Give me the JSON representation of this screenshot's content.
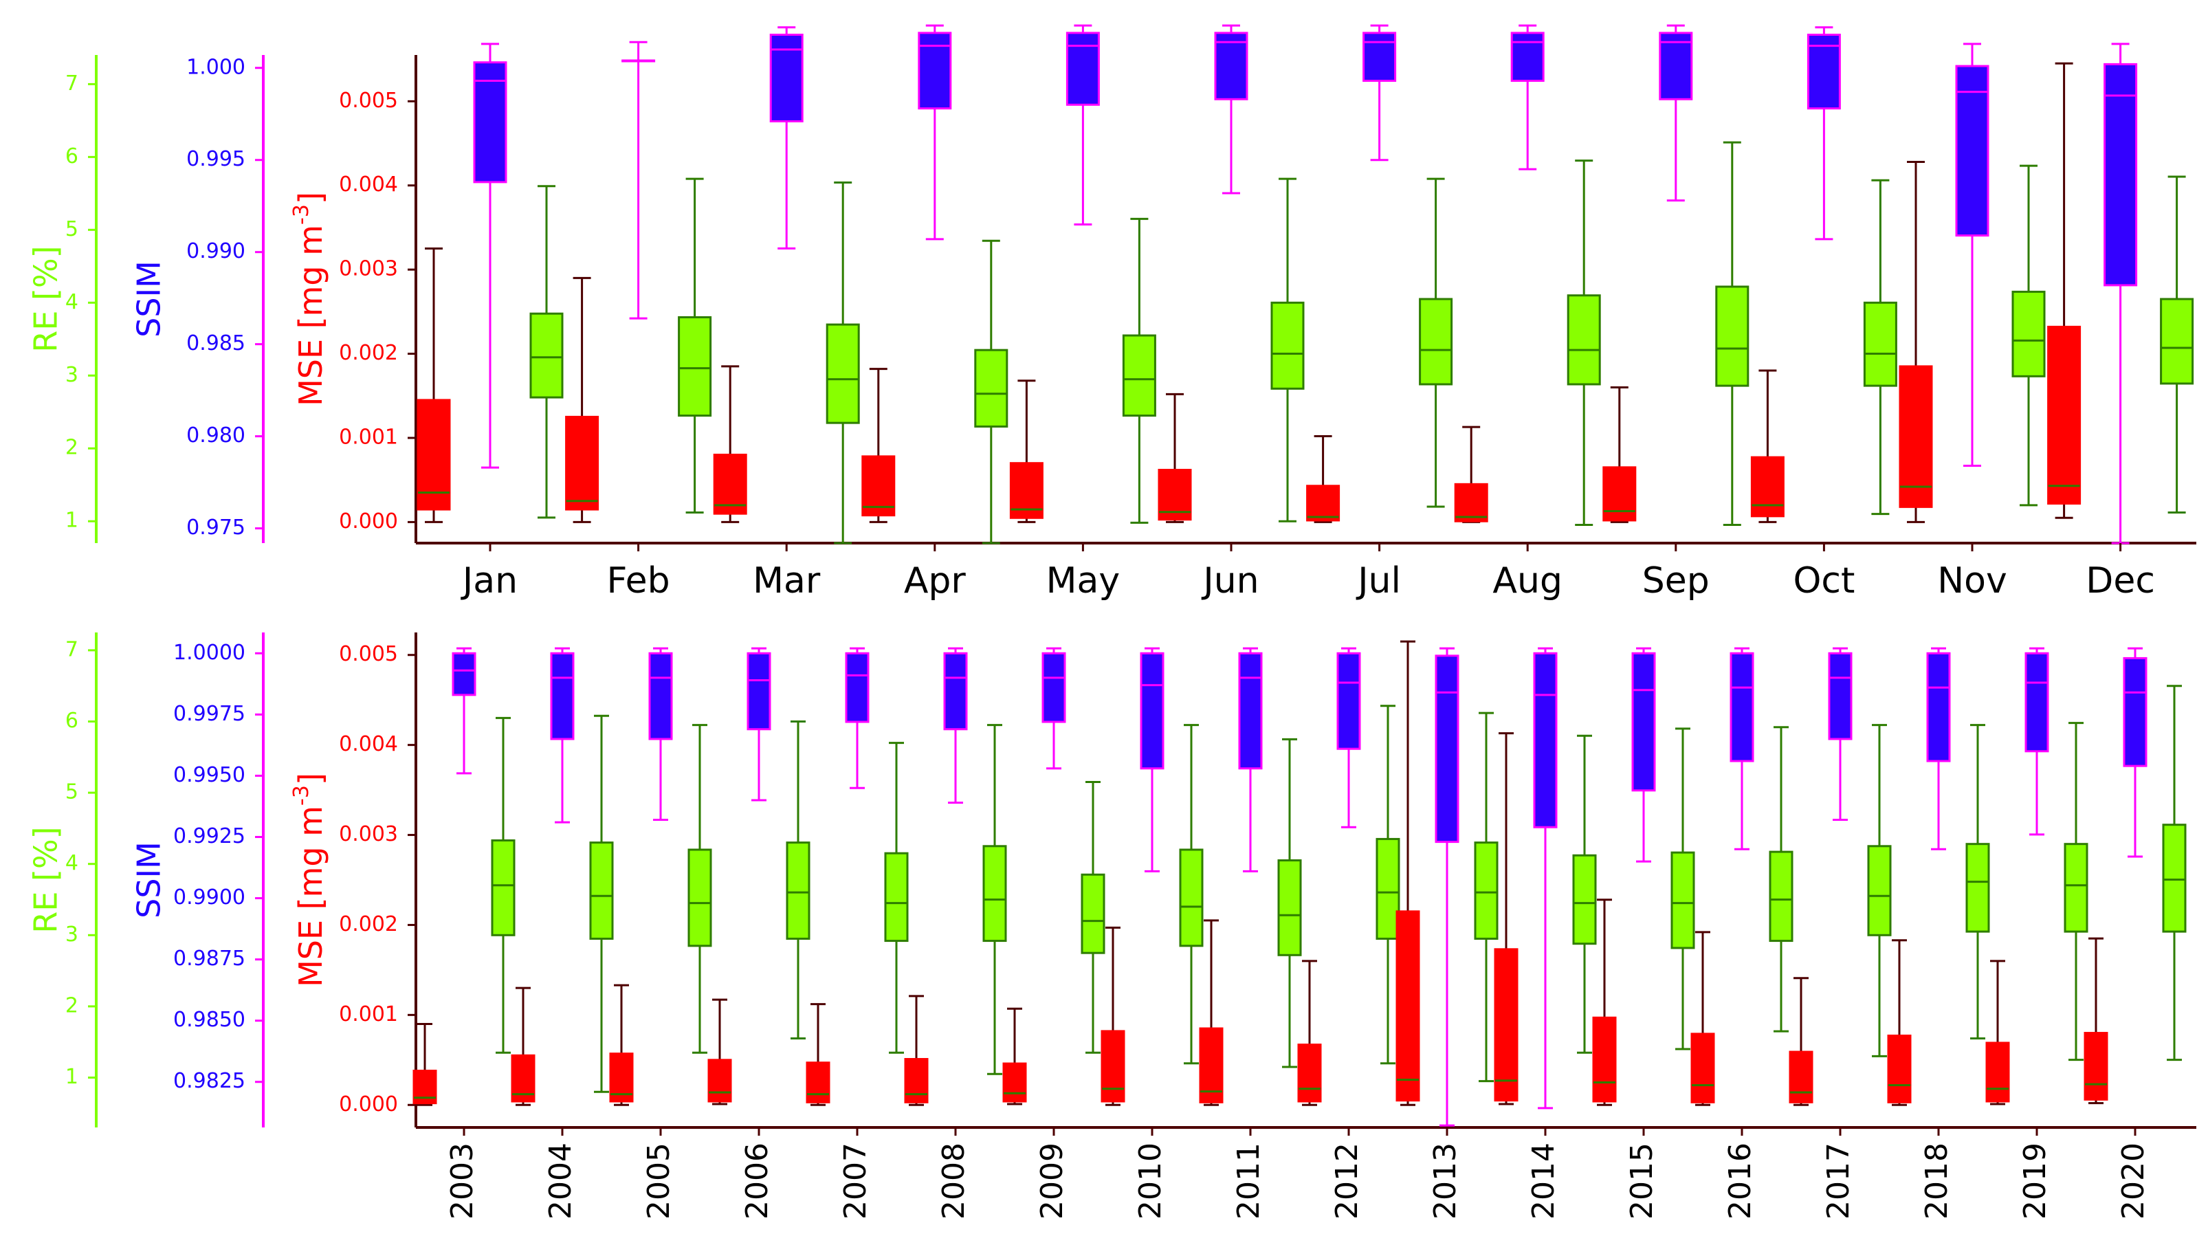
{
  "colors": {
    "re_axis": "#7fff00",
    "ssim_axis": "#1f00ff",
    "ssim_spine": "#ff00ff",
    "mse_axis": "#ff0000",
    "mse_spine": "#4d0000",
    "mse_box": "#ff0000",
    "mse_whisker": "#4d0000",
    "ssim_box": "#3300ff",
    "ssim_edge": "#ff00ff",
    "re_box": "#88ff00",
    "re_edge": "#2e7d00",
    "median_ssim": "#ff00ff",
    "median_other": "#2e7d00"
  },
  "chart_data": [
    {
      "type": "boxplot",
      "panel": "monthly",
      "categories": [
        "Jan",
        "Feb",
        "Mar",
        "Apr",
        "May",
        "Jun",
        "Jul",
        "Aug",
        "Sep",
        "Oct",
        "Nov",
        "Dec"
      ],
      "axes": {
        "re": {
          "label": "RE [%]",
          "ylim": [
            0.7,
            7.4
          ],
          "ticks": [
            1,
            2,
            3,
            4,
            5,
            6,
            7
          ]
        },
        "ssim": {
          "label": "SSIM",
          "ylim": [
            0.9742,
            1.0007
          ],
          "ticks": [
            0.975,
            0.98,
            0.985,
            0.99,
            0.995,
            1.0
          ],
          "tick_labels": [
            "0.975",
            "0.980",
            "0.985",
            "0.990",
            "0.995",
            "1.000"
          ]
        },
        "mse": {
          "label": "MSE [mg m-3]",
          "label_main": "MSE [mg m",
          "label_sup": "-3",
          "label_end": "]",
          "ylim": [
            -0.00025,
            0.00555
          ],
          "ticks": [
            0,
            0.001,
            0.002,
            0.003,
            0.004,
            0.005
          ],
          "tick_labels": [
            "0.000",
            "0.001",
            "0.002",
            "0.003",
            "0.004",
            "0.005"
          ]
        }
      },
      "series": [
        {
          "name": "MSE",
          "axis": "mse",
          "stats": [
            [
              0.0,
              0.00015,
              0.00035,
              0.00145,
              0.00325
            ],
            [
              0.0,
              0.00015,
              0.00025,
              0.00125,
              0.0029
            ],
            [
              0.0,
              0.0001,
              0.0002,
              0.0008,
              0.00185
            ],
            [
              0.0,
              8e-05,
              0.00018,
              0.00078,
              0.00182
            ],
            [
              0.0,
              5e-05,
              0.00015,
              0.0007,
              0.00168
            ],
            [
              0.0,
              3e-05,
              0.00012,
              0.00062,
              0.00152
            ],
            [
              0.0,
              2e-05,
              6e-05,
              0.00043,
              0.00102
            ],
            [
              0.0,
              1e-05,
              6e-05,
              0.00045,
              0.00113
            ],
            [
              0.0,
              2e-05,
              0.00013,
              0.00065,
              0.0016
            ],
            [
              0.0,
              7e-05,
              0.0002,
              0.00077,
              0.0018
            ],
            [
              0.0,
              0.00018,
              0.00042,
              0.00185,
              0.00428
            ],
            [
              5e-05,
              0.00022,
              0.00043,
              0.00232,
              0.00545
            ]
          ]
        },
        {
          "name": "SSIM",
          "axis": "ssim",
          "stats": [
            [
              0.9783,
              0.9938,
              0.9993,
              1.0003,
              1.0013
            ],
            [
              0.9864,
              1.0004,
              1.0004,
              1.0004,
              1.0014
            ],
            [
              0.9902,
              0.9971,
              1.001,
              1.0018,
              1.0022
            ],
            [
              0.9907,
              0.9978,
              1.0012,
              1.0019,
              1.0023
            ],
            [
              0.9915,
              0.998,
              1.0012,
              1.0019,
              1.0023
            ],
            [
              0.9932,
              0.9983,
              1.0014,
              1.0019,
              1.0023
            ],
            [
              0.995,
              0.9993,
              1.0014,
              1.0019,
              1.0023
            ],
            [
              0.9945,
              0.9993,
              1.0014,
              1.0019,
              1.0023
            ],
            [
              0.9928,
              0.9983,
              1.0014,
              1.0019,
              1.0023
            ],
            [
              0.9907,
              0.9978,
              1.0012,
              1.0018,
              1.0022
            ],
            [
              0.9784,
              0.9909,
              0.9987,
              1.0001,
              1.0013
            ],
            [
              0.9742,
              0.9882,
              0.9985,
              1.0002,
              1.0013
            ]
          ]
        },
        {
          "name": "RE",
          "axis": "re",
          "stats": [
            [
              1.05,
              2.7,
              3.25,
              3.85,
              5.6
            ],
            [
              1.12,
              2.45,
              3.1,
              3.8,
              5.7
            ],
            [
              0.7,
              2.35,
              2.95,
              3.7,
              5.65
            ],
            [
              0.7,
              2.3,
              2.75,
              3.35,
              4.85
            ],
            [
              0.98,
              2.45,
              2.95,
              3.55,
              5.15
            ],
            [
              1.0,
              2.82,
              3.3,
              4.0,
              5.7
            ],
            [
              1.2,
              2.88,
              3.35,
              4.05,
              5.7
            ],
            [
              0.95,
              2.88,
              3.35,
              4.1,
              5.95
            ],
            [
              0.95,
              2.86,
              3.37,
              4.22,
              6.2
            ],
            [
              1.1,
              2.86,
              3.3,
              4.0,
              5.68
            ],
            [
              1.22,
              2.99,
              3.48,
              4.15,
              5.88
            ],
            [
              1.12,
              2.89,
              3.38,
              4.05,
              5.73
            ]
          ]
        }
      ]
    },
    {
      "type": "boxplot",
      "panel": "yearly",
      "categories": [
        "2003",
        "2004",
        "2005",
        "2006",
        "2007",
        "2008",
        "2009",
        "2010",
        "2011",
        "2012",
        "2013",
        "2014",
        "2015",
        "2016",
        "2017",
        "2018",
        "2019",
        "2020"
      ],
      "axes": {
        "re": {
          "label": "RE [%]",
          "ylim": [
            0.3,
            7.25
          ],
          "ticks": [
            1,
            2,
            3,
            4,
            5,
            6,
            7
          ]
        },
        "ssim": {
          "label": "SSIM",
          "ylim": [
            0.98064,
            1.00085
          ],
          "ticks": [
            0.9825,
            0.985,
            0.9875,
            0.99,
            0.9925,
            0.995,
            0.9975,
            1.0
          ],
          "tick_labels": [
            "0.9825",
            "0.9850",
            "0.9875",
            "0.9900",
            "0.9925",
            "0.9950",
            "0.9975",
            "1.0000"
          ]
        },
        "mse": {
          "label": "MSE [mg m-3]",
          "label_main": "MSE [mg m",
          "label_sup": "-3",
          "label_end": "]",
          "ylim": [
            -0.00025,
            0.00525
          ],
          "ticks": [
            0,
            0.001,
            0.002,
            0.003,
            0.004,
            0.005
          ],
          "tick_labels": [
            "0.000",
            "0.001",
            "0.002",
            "0.003",
            "0.004",
            "0.005"
          ]
        }
      },
      "series": [
        {
          "name": "MSE",
          "axis": "mse",
          "stats": [
            [
              0.0,
              2e-05,
              8e-05,
              0.00038,
              0.0009
            ],
            [
              0.0,
              4e-05,
              0.00012,
              0.00055,
              0.0013
            ],
            [
              0.0,
              4e-05,
              0.00012,
              0.00057,
              0.00133
            ],
            [
              1e-05,
              4e-05,
              0.00014,
              0.0005,
              0.00117
            ],
            [
              0.0,
              3e-05,
              0.00012,
              0.00047,
              0.00112
            ],
            [
              0.0,
              3e-05,
              0.00012,
              0.00051,
              0.00121
            ],
            [
              1e-05,
              4e-05,
              0.00013,
              0.00046,
              0.00107
            ],
            [
              0.0,
              4e-05,
              0.00018,
              0.00082,
              0.00197
            ],
            [
              0.0,
              3e-05,
              0.00015,
              0.00085,
              0.00205
            ],
            [
              0.0,
              4e-05,
              0.00018,
              0.00067,
              0.0016
            ],
            [
              0.0,
              5e-05,
              0.00028,
              0.00215,
              0.00515
            ],
            [
              1e-05,
              5e-05,
              0.00027,
              0.00173,
              0.00413
            ],
            [
              0.0,
              4e-05,
              0.00025,
              0.00097,
              0.00228
            ],
            [
              0.0,
              3e-05,
              0.00022,
              0.00079,
              0.00192
            ],
            [
              0.0,
              3e-05,
              0.00014,
              0.00059,
              0.00141
            ],
            [
              0.0,
              3e-05,
              0.00022,
              0.00077,
              0.00183
            ],
            [
              1e-05,
              4e-05,
              0.00018,
              0.00069,
              0.0016
            ],
            [
              2e-05,
              6e-05,
              0.00023,
              0.0008,
              0.00185
            ]
          ]
        },
        {
          "name": "SSIM",
          "axis": "ssim",
          "stats": [
            [
              0.9951,
              0.9983,
              0.9993,
              1.0,
              1.0002
            ],
            [
              0.9931,
              0.9965,
              0.999,
              1.0,
              1.0002
            ],
            [
              0.9932,
              0.9965,
              0.999,
              1.0,
              1.0002
            ],
            [
              0.994,
              0.9969,
              0.9989,
              1.0,
              1.0002
            ],
            [
              0.9945,
              0.9972,
              0.9991,
              1.0,
              1.0002
            ],
            [
              0.9939,
              0.9969,
              0.999,
              1.0,
              1.0002
            ],
            [
              0.9953,
              0.9972,
              0.999,
              1.0,
              1.0002
            ],
            [
              0.9911,
              0.9953,
              0.9987,
              1.0,
              1.0002
            ],
            [
              0.9911,
              0.9953,
              0.999,
              1.0,
              1.0002
            ],
            [
              0.9929,
              0.9961,
              0.9988,
              1.0,
              1.0002
            ],
            [
              0.98072,
              0.9923,
              0.9984,
              0.9999,
              1.0002
            ],
            [
              0.98143,
              0.9929,
              0.9983,
              1.0,
              1.0002
            ],
            [
              0.9915,
              0.9944,
              0.9985,
              1.0,
              1.0002
            ],
            [
              0.992,
              0.9956,
              0.9986,
              1.0,
              1.0002
            ],
            [
              0.9932,
              0.9965,
              0.999,
              1.0,
              1.0002
            ],
            [
              0.992,
              0.9956,
              0.9986,
              1.0,
              1.0002
            ],
            [
              0.9926,
              0.996,
              0.9988,
              1.0,
              1.0002
            ],
            [
              0.9917,
              0.9954,
              0.9984,
              0.9998,
              1.0002
            ]
          ]
        },
        {
          "name": "RE",
          "axis": "re",
          "stats": [
            [
              1.35,
              3.0,
              3.7,
              4.33,
              6.05
            ],
            [
              0.8,
              2.95,
              3.55,
              4.3,
              6.08
            ],
            [
              1.35,
              2.85,
              3.45,
              4.2,
              5.95
            ],
            [
              1.55,
              2.95,
              3.6,
              4.3,
              6.0
            ],
            [
              1.35,
              2.92,
              3.45,
              4.15,
              5.7
            ],
            [
              1.05,
              2.92,
              3.5,
              4.25,
              5.95
            ],
            [
              1.35,
              2.75,
              3.2,
              3.85,
              5.15
            ],
            [
              1.2,
              2.85,
              3.4,
              4.2,
              5.95
            ],
            [
              1.15,
              2.72,
              3.28,
              4.05,
              5.75
            ],
            [
              1.2,
              2.95,
              3.6,
              4.35,
              6.22
            ],
            [
              0.95,
              2.95,
              3.6,
              4.3,
              6.12
            ],
            [
              1.35,
              2.88,
              3.45,
              4.12,
              5.8
            ],
            [
              1.4,
              2.82,
              3.45,
              4.16,
              5.9
            ],
            [
              1.65,
              2.92,
              3.5,
              4.17,
              5.92
            ],
            [
              1.3,
              3.0,
              3.55,
              4.25,
              5.95
            ],
            [
              1.55,
              3.05,
              3.75,
              4.28,
              5.95
            ],
            [
              1.25,
              3.05,
              3.7,
              4.28,
              5.98
            ],
            [
              1.25,
              3.05,
              3.78,
              4.55,
              6.5
            ]
          ]
        }
      ]
    }
  ]
}
